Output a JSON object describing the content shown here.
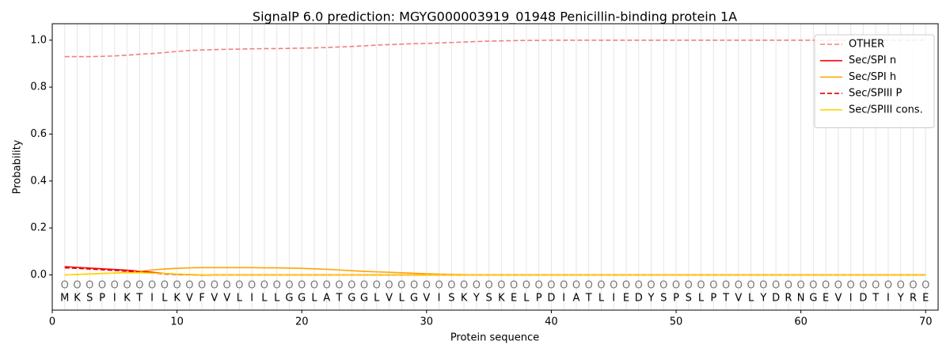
{
  "chart_data": {
    "type": "line",
    "title": "SignalP 6.0 prediction: MGYG000003919_01948 Penicillin-binding protein 1A",
    "x_label": "Protein sequence",
    "y_label": "Probability",
    "x": [
      1,
      2,
      3,
      4,
      5,
      6,
      7,
      8,
      9,
      10,
      11,
      12,
      13,
      14,
      15,
      16,
      17,
      18,
      19,
      20,
      21,
      22,
      23,
      24,
      25,
      26,
      27,
      28,
      29,
      30,
      31,
      32,
      33,
      34,
      35,
      36,
      37,
      38,
      39,
      40,
      41,
      42,
      43,
      44,
      45,
      46,
      47,
      48,
      49,
      50,
      51,
      52,
      53,
      54,
      55,
      56,
      57,
      58,
      59,
      60,
      61,
      62,
      63,
      64,
      65,
      66,
      67,
      68,
      69,
      70
    ],
    "residues": [
      "M",
      "K",
      "S",
      "P",
      "I",
      "K",
      "T",
      "I",
      "L",
      "K",
      "V",
      "F",
      "V",
      "V",
      "L",
      "I",
      "L",
      "L",
      "G",
      "G",
      "L",
      "A",
      "T",
      "G",
      "G",
      "L",
      "V",
      "L",
      "G",
      "V",
      "I",
      "S",
      "K",
      "Y",
      "S",
      "K",
      "E",
      "L",
      "P",
      "D",
      "I",
      "A",
      "T",
      "L",
      "I",
      "E",
      "D",
      "Y",
      "S",
      "P",
      "S",
      "L",
      "P",
      "T",
      "V",
      "L",
      "Y",
      "D",
      "R",
      "N",
      "G",
      "E",
      "V",
      "I",
      "D",
      "T",
      "I",
      "Y",
      "R",
      "E"
    ],
    "predictions": [
      "O",
      "O",
      "O",
      "O",
      "O",
      "O",
      "O",
      "O",
      "O",
      "O",
      "O",
      "O",
      "O",
      "O",
      "O",
      "O",
      "O",
      "O",
      "O",
      "O",
      "O",
      "O",
      "O",
      "O",
      "O",
      "O",
      "O",
      "O",
      "O",
      "O",
      "O",
      "O",
      "O",
      "O",
      "O",
      "O",
      "O",
      "O",
      "O",
      "O",
      "O",
      "O",
      "O",
      "O",
      "O",
      "O",
      "O",
      "O",
      "O",
      "O",
      "O",
      "O",
      "O",
      "O",
      "O",
      "O",
      "O",
      "O",
      "O",
      "O",
      "O",
      "O",
      "O",
      "O",
      "O",
      "O",
      "O",
      "O",
      "O",
      "O"
    ],
    "series": [
      {
        "name": "OTHER",
        "color": "#f08080",
        "dashed": true,
        "values": [
          0.93,
          0.93,
          0.93,
          0.931,
          0.933,
          0.936,
          0.94,
          0.943,
          0.947,
          0.952,
          0.956,
          0.958,
          0.96,
          0.961,
          0.962,
          0.963,
          0.964,
          0.964,
          0.965,
          0.966,
          0.967,
          0.969,
          0.971,
          0.973,
          0.976,
          0.979,
          0.981,
          0.983,
          0.985,
          0.986,
          0.988,
          0.99,
          0.992,
          0.994,
          0.996,
          0.997,
          0.998,
          0.999,
          0.999,
          1.0,
          1.0,
          1.0,
          1.0,
          1.0,
          1.0,
          1.0,
          1.0,
          1.0,
          1.0,
          1.0,
          1.0,
          1.0,
          1.0,
          1.0,
          1.0,
          1.0,
          1.0,
          1.0,
          1.0,
          1.0,
          1.0,
          1.0,
          1.0,
          1.0,
          1.0,
          1.0,
          1.0,
          1.0,
          1.0,
          1.0
        ]
      },
      {
        "name": "Sec/SPI n",
        "color": "#ff0000",
        "dashed": false,
        "values": [
          0.035,
          0.032,
          0.029,
          0.026,
          0.023,
          0.02,
          0.016,
          0.011,
          0.006,
          0.003,
          0.001,
          0,
          0,
          0,
          0,
          0,
          0,
          0,
          0,
          0,
          0,
          0,
          0,
          0,
          0,
          0,
          0,
          0,
          0,
          0,
          0,
          0,
          0,
          0,
          0,
          0,
          0,
          0,
          0,
          0,
          0,
          0,
          0,
          0,
          0,
          0,
          0,
          0,
          0,
          0,
          0,
          0,
          0,
          0,
          0,
          0,
          0,
          0,
          0,
          0,
          0,
          0,
          0,
          0,
          0,
          0,
          0,
          0,
          0,
          0
        ]
      },
      {
        "name": "Sec/SPI h",
        "color": "#ffa500",
        "dashed": false,
        "values": [
          0.0,
          0.002,
          0.004,
          0.006,
          0.008,
          0.011,
          0.016,
          0.021,
          0.025,
          0.028,
          0.03,
          0.031,
          0.031,
          0.031,
          0.031,
          0.031,
          0.03,
          0.03,
          0.029,
          0.028,
          0.026,
          0.024,
          0.021,
          0.018,
          0.015,
          0.013,
          0.011,
          0.009,
          0.007,
          0.005,
          0.003,
          0.002,
          0.001,
          0,
          0,
          0,
          0,
          0,
          0,
          0,
          0,
          0,
          0,
          0,
          0,
          0,
          0,
          0,
          0,
          0,
          0,
          0,
          0,
          0,
          0,
          0,
          0,
          0,
          0,
          0,
          0,
          0,
          0,
          0,
          0,
          0,
          0,
          0,
          0,
          0
        ]
      },
      {
        "name": "Sec/SPIII P",
        "color": "#dd0000",
        "dashed": true,
        "values": [
          0.03,
          0.028,
          0.025,
          0.022,
          0.019,
          0.016,
          0.012,
          0.008,
          0.004,
          0.002,
          0.001,
          0,
          0,
          0,
          0,
          0,
          0,
          0,
          0,
          0,
          0,
          0,
          0,
          0,
          0,
          0,
          0,
          0,
          0,
          0,
          0,
          0,
          0,
          0,
          0,
          0,
          0,
          0,
          0,
          0,
          0,
          0,
          0,
          0,
          0,
          0,
          0,
          0,
          0,
          0,
          0,
          0,
          0,
          0,
          0,
          0,
          0,
          0,
          0,
          0,
          0,
          0,
          0,
          0,
          0,
          0,
          0,
          0,
          0,
          0
        ]
      },
      {
        "name": "Sec/SPIII cons.",
        "color": "#ffd700",
        "dashed": false,
        "values": [
          0.0,
          0.002,
          0.004,
          0.006,
          0.008,
          0.009,
          0.009,
          0.008,
          0.006,
          0.004,
          0.002,
          0.001,
          0,
          0,
          0,
          0,
          0,
          0,
          0,
          0,
          0,
          0,
          0,
          0,
          0,
          0,
          0,
          0,
          0,
          0,
          0,
          0,
          0,
          0,
          0,
          0,
          0,
          0,
          0,
          0,
          0,
          0,
          0,
          0,
          0,
          0,
          0,
          0,
          0,
          0,
          0,
          0,
          0,
          0,
          0,
          0,
          0,
          0,
          0,
          0,
          0,
          0,
          0,
          0,
          0,
          0,
          0,
          0,
          0,
          0
        ]
      }
    ],
    "xlim": [
      0,
      71
    ],
    "xticks": [
      0,
      10,
      20,
      30,
      40,
      50,
      60,
      70
    ],
    "ylim": [
      -0.15,
      1.07
    ],
    "yticks": [
      {
        "value": 0,
        "label": "0.0"
      },
      {
        "value": 0.2,
        "label": "0.2"
      },
      {
        "value": 0.4,
        "label": "0.4"
      },
      {
        "value": 0.6,
        "label": "0.6"
      },
      {
        "value": 0.8,
        "label": "0.8"
      },
      {
        "value": 1.0,
        "label": "1.0"
      }
    ],
    "prediction_y": -0.045,
    "residue_y": -0.1,
    "legend": "upper right"
  }
}
